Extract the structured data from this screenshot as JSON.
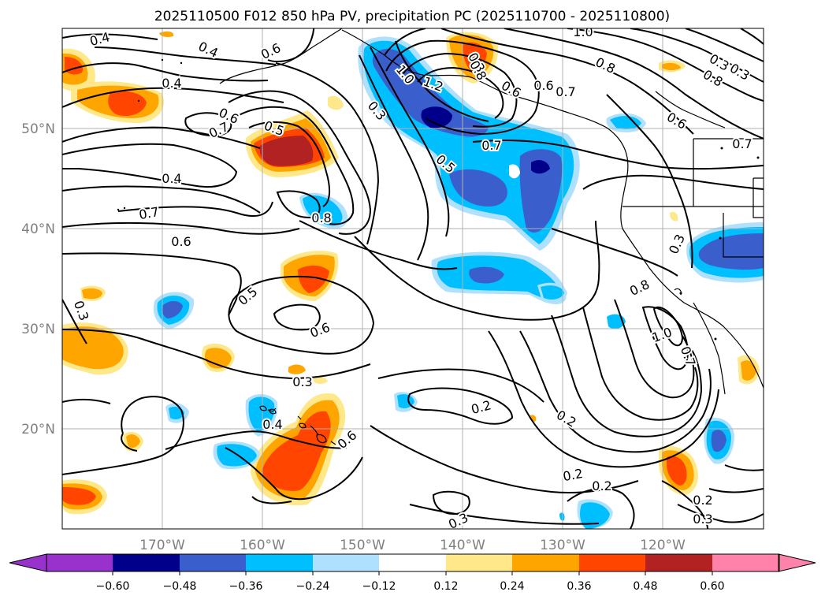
{
  "title": "2025110500 F012 850 hPa PV, precipitation PC (2025110700 - 2025110800)",
  "map": {
    "projection": "plate carree",
    "lon_range": [
      "180°",
      "110°W"
    ],
    "lat_range": [
      "10°N",
      "60°N"
    ],
    "lat_ticks": [
      "50°N",
      "40°N",
      "30°N",
      "20°N"
    ],
    "lon_ticks": [
      "170°W",
      "160°W",
      "150°W",
      "140°W",
      "130°W",
      "120°W"
    ],
    "gridlines": true,
    "contour_color": "#000000",
    "coastline_color": "#000000"
  },
  "contour_labels": [
    "0.4",
    "0.4",
    "0.6",
    "0.4",
    "0.6",
    "0.5",
    "0.7",
    "0.4",
    "0.7",
    "0.6",
    "0.8",
    "0.3",
    "1.0",
    "1.2",
    "0.3",
    "0.5",
    "0.7",
    "0.8",
    "0.6",
    "0.6",
    "0.7",
    "1.0",
    "0.8",
    "0.6",
    "0.3",
    "0.7",
    "0.8",
    "0.3",
    "0.5",
    "0.6",
    "0.8",
    "1.0",
    "0.7",
    "0.3",
    "0.3",
    "0.3",
    "0.4",
    "0.6",
    "0.2",
    "0.2",
    "0.2",
    "0.2",
    "0.3"
  ],
  "colorbar": {
    "ticks": [
      "−0.60",
      "−0.48",
      "−0.36",
      "−0.24",
      "−0.12",
      "0.12",
      "0.24",
      "0.36",
      "0.48",
      "0.60"
    ],
    "colors": [
      "#9932cc",
      "#00008b",
      "#3a5fcd",
      "#00bfff",
      "#afe1ff",
      "#ffffff",
      "#ffe88a",
      "#ffa500",
      "#ff4500",
      "#b22222",
      "#ff82ab"
    ]
  },
  "shading_colors": {
    "light_yellow": "#ffe88a",
    "orange": "#ffa500",
    "red_orange": "#ff4500",
    "dark_red": "#b22222",
    "light_blue": "#afe1ff",
    "deep_sky_blue": "#00bfff",
    "royal_blue": "#3a5fcd",
    "navy": "#00008b"
  }
}
